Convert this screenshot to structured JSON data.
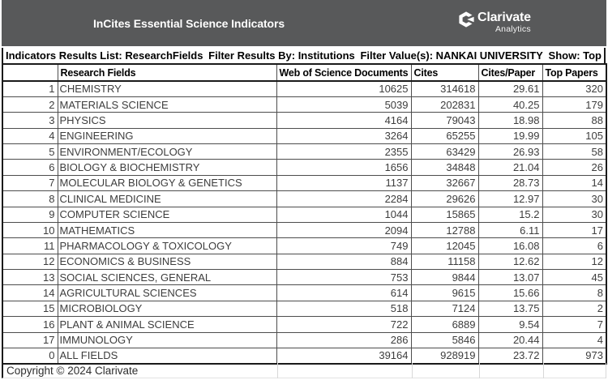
{
  "header": {
    "title": "InCites Essential Science Indicators",
    "brand_name": "Clarivate",
    "brand_sub": "Analytics"
  },
  "filter_bar": {
    "items": [
      "Indicators Results List: ResearchFields",
      "Filter Results By: Institutions",
      "Filter Value(s): NANKAI UNIVERSITY",
      "Show: Top"
    ]
  },
  "table": {
    "columns": [
      "",
      "Research Fields",
      "Web of Science Documents",
      "Cites",
      "Cites/Paper",
      "Top Papers"
    ],
    "rows": [
      {
        "rank": "1",
        "field": "CHEMISTRY",
        "docs": "10625",
        "cites": "314618",
        "cites_per_paper": "29.61",
        "top_papers": "320"
      },
      {
        "rank": "2",
        "field": "MATERIALS SCIENCE",
        "docs": "5039",
        "cites": "202831",
        "cites_per_paper": "40.25",
        "top_papers": "179"
      },
      {
        "rank": "3",
        "field": "PHYSICS",
        "docs": "4164",
        "cites": "79043",
        "cites_per_paper": "18.98",
        "top_papers": "88"
      },
      {
        "rank": "4",
        "field": "ENGINEERING",
        "docs": "3264",
        "cites": "65255",
        "cites_per_paper": "19.99",
        "top_papers": "105"
      },
      {
        "rank": "5",
        "field": "ENVIRONMENT/ECOLOGY",
        "docs": "2355",
        "cites": "63429",
        "cites_per_paper": "26.93",
        "top_papers": "58"
      },
      {
        "rank": "6",
        "field": "BIOLOGY & BIOCHEMISTRY",
        "docs": "1656",
        "cites": "34848",
        "cites_per_paper": "21.04",
        "top_papers": "26"
      },
      {
        "rank": "7",
        "field": "MOLECULAR BIOLOGY & GENETICS",
        "docs": "1137",
        "cites": "32667",
        "cites_per_paper": "28.73",
        "top_papers": "14"
      },
      {
        "rank": "8",
        "field": "CLINICAL MEDICINE",
        "docs": "2284",
        "cites": "29626",
        "cites_per_paper": "12.97",
        "top_papers": "30"
      },
      {
        "rank": "9",
        "field": "COMPUTER SCIENCE",
        "docs": "1044",
        "cites": "15865",
        "cites_per_paper": "15.2",
        "top_papers": "30"
      },
      {
        "rank": "10",
        "field": "MATHEMATICS",
        "docs": "2094",
        "cites": "12788",
        "cites_per_paper": "6.11",
        "top_papers": "17"
      },
      {
        "rank": "11",
        "field": "PHARMACOLOGY & TOXICOLOGY",
        "docs": "749",
        "cites": "12045",
        "cites_per_paper": "16.08",
        "top_papers": "6"
      },
      {
        "rank": "12",
        "field": "ECONOMICS & BUSINESS",
        "docs": "884",
        "cites": "11158",
        "cites_per_paper": "12.62",
        "top_papers": "12"
      },
      {
        "rank": "13",
        "field": "SOCIAL SCIENCES, GENERAL",
        "docs": "753",
        "cites": "9844",
        "cites_per_paper": "13.07",
        "top_papers": "45"
      },
      {
        "rank": "14",
        "field": "AGRICULTURAL SCIENCES",
        "docs": "614",
        "cites": "9615",
        "cites_per_paper": "15.66",
        "top_papers": "8"
      },
      {
        "rank": "15",
        "field": "MICROBIOLOGY",
        "docs": "518",
        "cites": "7124",
        "cites_per_paper": "13.75",
        "top_papers": "2"
      },
      {
        "rank": "16",
        "field": "PLANT & ANIMAL SCIENCE",
        "docs": "722",
        "cites": "6889",
        "cites_per_paper": "9.54",
        "top_papers": "7"
      },
      {
        "rank": "17",
        "field": "IMMUNOLOGY",
        "docs": "286",
        "cites": "5846",
        "cites_per_paper": "20.44",
        "top_papers": "4"
      },
      {
        "rank": "0",
        "field": "ALL FIELDS",
        "docs": "39164",
        "cites": "928919",
        "cites_per_paper": "23.72",
        "top_papers": "973"
      }
    ]
  },
  "footer": {
    "copyright": "Copyright © 2024 Clarivate"
  },
  "colors": {
    "header_bg": "#58595a",
    "border_dark": "#1a1a1a",
    "grid_inner": "#4d4d4d",
    "grid_faint": "#d8d8d8",
    "text_data": "#3d3d3d"
  }
}
